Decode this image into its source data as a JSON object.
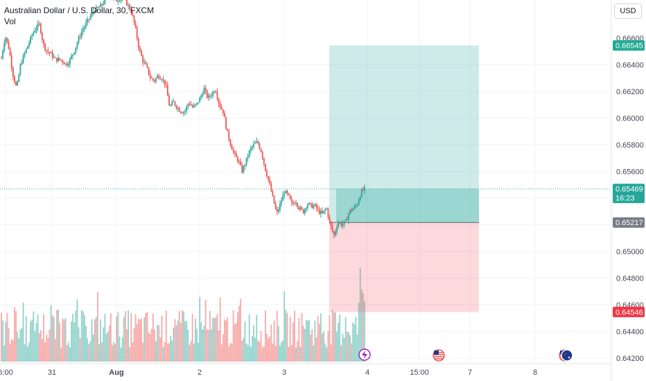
{
  "header": {
    "title": "Australian Dollar / U.S. Dollar, 30, FXCM",
    "indicator": "Vol"
  },
  "currency_button": "USD",
  "price_axis": {
    "ticks": [
      "0.66600",
      "0.66400",
      "0.66200",
      "0.66000",
      "0.65800",
      "0.65600",
      "0.65000",
      "0.64800",
      "0.64600",
      "0.64400",
      "0.64200"
    ]
  },
  "time_axis": {
    "labels": [
      "6:00",
      "31",
      "Aug",
      "2",
      "3",
      "4",
      "15:00",
      "7",
      "8"
    ]
  },
  "price_tags": {
    "take_profit": {
      "value": "0.66545",
      "color": "#22ab94"
    },
    "current": {
      "value": "0.65469",
      "countdown": "16:23",
      "color": "#26a69a"
    },
    "entry": {
      "value": "0.65217",
      "color": "#787b86"
    },
    "stop_loss": {
      "value": "0.64546",
      "color": "#f23645"
    }
  },
  "position_tool": {
    "type": "long",
    "entry": 0.65217,
    "target": 0.66545,
    "stop": 0.64546,
    "profit_color": "#26a69a",
    "loss_color": "#f7525f"
  },
  "event_icons": [
    "lightning-icon",
    "us-flag-icon",
    "us-flag-icon",
    "au-flag-icon"
  ],
  "colors": {
    "up": "#26a69a",
    "down": "#ef5350",
    "grid": "#f0f3fa",
    "text": "#131722"
  },
  "chart_data": {
    "type": "candlestick",
    "symbol": "AUDUSD",
    "interval": "30",
    "ylim": [
      0.641,
      0.6685
    ],
    "price_path": [
      0.6645,
      0.6662,
      0.6652,
      0.6633,
      0.6622,
      0.664,
      0.6648,
      0.6655,
      0.6662,
      0.6668,
      0.667,
      0.6655,
      0.665,
      0.6648,
      0.6644,
      0.6644,
      0.6643,
      0.664,
      0.6644,
      0.665,
      0.6658,
      0.6665,
      0.667,
      0.6675,
      0.668,
      0.6682,
      0.6684,
      0.6688,
      0.6692,
      0.669,
      0.6688,
      0.669,
      0.669,
      0.6685,
      0.668,
      0.6668,
      0.6652,
      0.6643,
      0.6638,
      0.663,
      0.6628,
      0.6632,
      0.663,
      0.6625,
      0.6608,
      0.6612,
      0.6608,
      0.6605,
      0.6605,
      0.6612,
      0.6608,
      0.661,
      0.6615,
      0.6622,
      0.6615,
      0.6618,
      0.6622,
      0.661,
      0.6605,
      0.659,
      0.658,
      0.6572,
      0.6568,
      0.656,
      0.6568,
      0.6576,
      0.658,
      0.6582,
      0.6575,
      0.6562,
      0.6552,
      0.654,
      0.6528,
      0.6536,
      0.6545,
      0.6542,
      0.6535,
      0.6538,
      0.6532,
      0.653,
      0.6536,
      0.6534,
      0.6534,
      0.653,
      0.6528,
      0.6533,
      0.652,
      0.6512,
      0.6522,
      0.652,
      0.6522,
      0.653,
      0.6532,
      0.6535,
      0.6544,
      0.6547
    ]
  }
}
